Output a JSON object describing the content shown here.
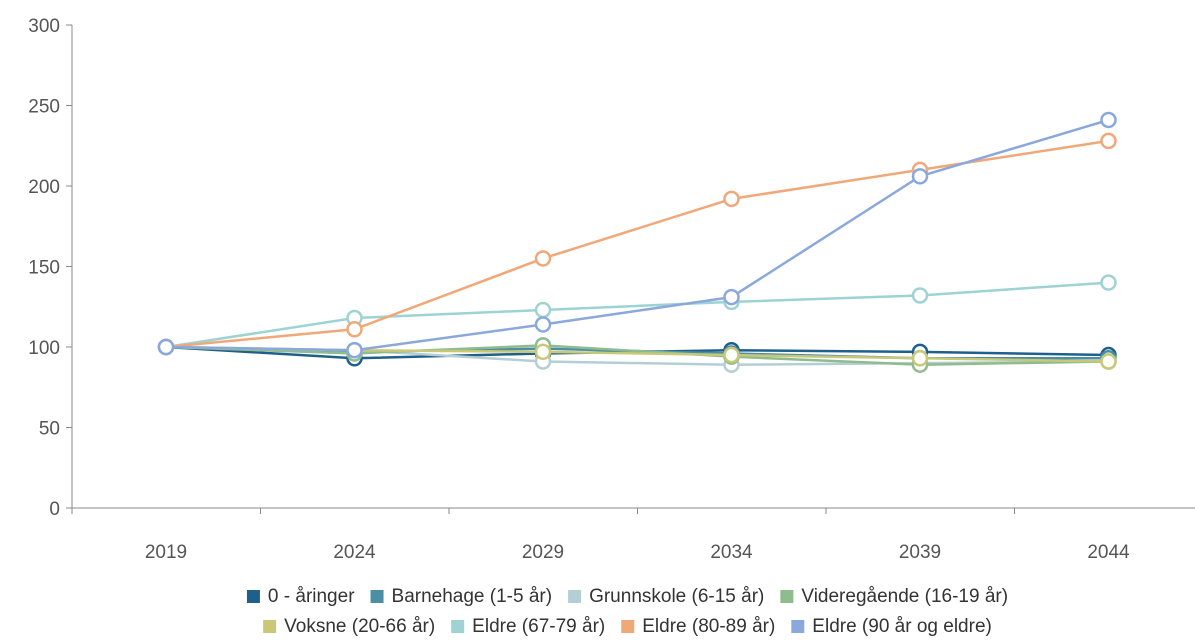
{
  "chart_data": {
    "type": "line",
    "title": "",
    "xlabel": "",
    "ylabel": "",
    "x": [
      "2019",
      "2024",
      "2029",
      "2034",
      "2039",
      "2044"
    ],
    "ylim": [
      0,
      300
    ],
    "yticks": [
      0,
      50,
      100,
      150,
      200,
      250,
      300
    ],
    "grid": false,
    "legend_position": "bottom",
    "series": [
      {
        "name": "0 - åringer",
        "color": "#1f5f8b",
        "values": [
          100,
          93,
          96,
          98,
          97,
          95
        ]
      },
      {
        "name": "Barnehage (1-5 år)",
        "color": "#4a8fa6",
        "values": [
          100,
          97,
          99,
          96,
          93,
          93
        ]
      },
      {
        "name": "Grunnskole (6-15 år)",
        "color": "#b3cfd4",
        "values": [
          100,
          98,
          91,
          89,
          90,
          91
        ]
      },
      {
        "name": "Videregående (16-19 år)",
        "color": "#8fbc8f",
        "values": [
          100,
          96,
          101,
          94,
          89,
          91
        ]
      },
      {
        "name": "Voksne (20-66 år)",
        "color": "#c8c878",
        "values": [
          100,
          98,
          97,
          95,
          93,
          91
        ]
      },
      {
        "name": "Eldre (67-79 år)",
        "color": "#9ed3d3",
        "values": [
          100,
          118,
          123,
          128,
          132,
          140
        ]
      },
      {
        "name": "Eldre (80-89 år)",
        "color": "#f0a878",
        "values": [
          100,
          111,
          155,
          192,
          210,
          228
        ]
      },
      {
        "name": "Eldre (90 år og eldre)",
        "color": "#8aa8dc",
        "values": [
          100,
          98,
          114,
          131,
          206,
          241
        ]
      }
    ]
  }
}
